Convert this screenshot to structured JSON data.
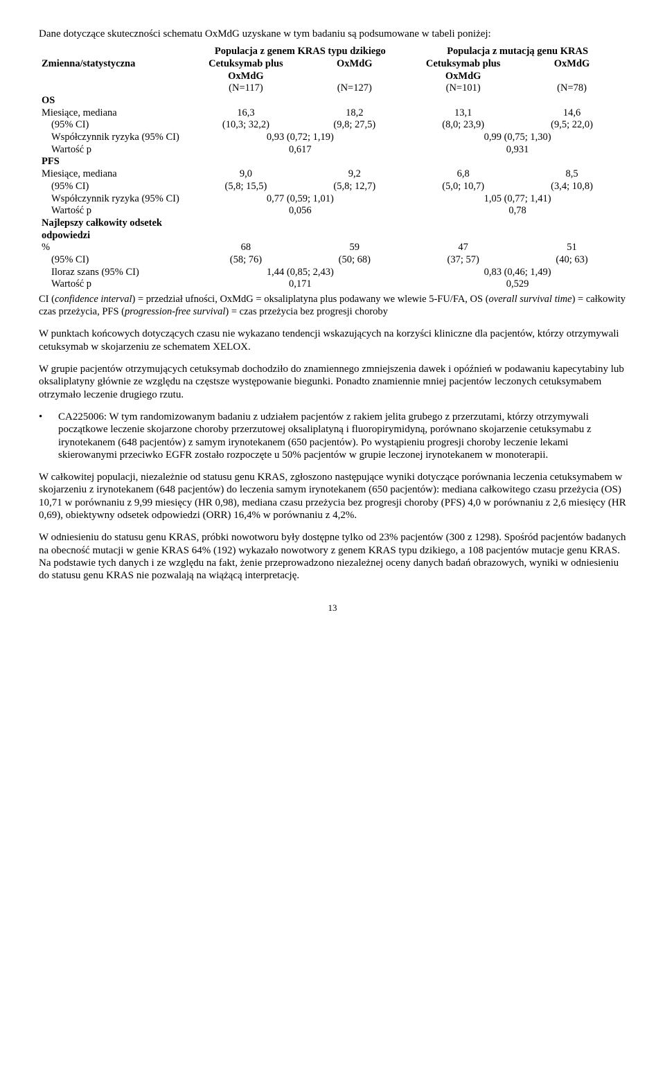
{
  "intro": "Dane dotyczące skuteczności schematu OxMdG uzyskane w tym badaniu są podsumowane w tabeli poniżej:",
  "table": {
    "header": {
      "col0": "Zmienna/statystyczna",
      "group1": "Populacja z genem KRAS typu dzikiego",
      "group2": "Populacja z mutacją genu KRAS",
      "sub1": "Cetuksymab plus OxMdG",
      "sub2": "OxMdG",
      "sub3": "Cetuksymab plus OxMdG",
      "sub4": "OxMdG",
      "n1": "(N=117)",
      "n2": "(N=127)",
      "n3": "(N=101)",
      "n4": "(N=78)"
    },
    "os_label": "OS",
    "months_median": "Miesiące, mediana",
    "os_median": [
      "16,3",
      "18,2",
      "13,1",
      "14,6"
    ],
    "ci95_label": "(95% CI)",
    "os_ci": [
      "(10,3; 32,2)",
      "(9,8; 27,5)",
      "(8,0; 23,9)",
      "(9,5; 22,0)"
    ],
    "hr_label": "Współczynnik ryzyka (95% CI)",
    "os_hr": [
      "0,93 (0,72; 1,19)",
      "0,99 (0,75; 1,30)"
    ],
    "p_label": "Wartość p",
    "os_p": [
      "0,617",
      "0,931"
    ],
    "pfs_label": "PFS",
    "pfs_median": [
      "9,0",
      "9,2",
      "6,8",
      "8,5"
    ],
    "pfs_ci": [
      "(5,8; 15,5)",
      "(5,8; 12,7)",
      "(5,0; 10,7)",
      "(3,4; 10,8)"
    ],
    "pfs_hr": [
      "0,77 (0,59; 1,01)",
      "1,05 (0,77; 1,41)"
    ],
    "pfs_p": [
      "0,056",
      "0,78"
    ],
    "orr_label": "Najlepszy całkowity odsetek odpowiedzi",
    "pct_label": "%",
    "orr_pct": [
      "68",
      "59",
      "47",
      "51"
    ],
    "orr_ci": [
      "(58; 76)",
      "(50; 68)",
      "(37; 57)",
      "(40; 63)"
    ],
    "or_label": "Iloraz szans (95% CI)",
    "orr_or": [
      "1,44 (0,85; 2,43)",
      "0,83 (0,46; 1,49)"
    ],
    "orr_p": [
      "0,171",
      "0,529"
    ]
  },
  "footnote_a": "CI (",
  "footnote_b": "confidence interval",
  "footnote_c": ") = przedział ufności, OxMdG = oksaliplatyna plus podawany we wlewie 5-FU/FA, OS (",
  "footnote_d": "overall survival time",
  "footnote_e": ") = całkowity czas przeżycia, PFS (",
  "footnote_f": "progression-free survival",
  "footnote_g": ") = czas przeżycia bez progresji choroby",
  "p1": "W punktach końcowych dotyczących czasu nie wykazano tendencji wskazujących na korzyści kliniczne dla pacjentów, którzy otrzymywali cetuksymab w skojarzeniu ze schematem XELOX.",
  "p2": "W grupie pacjentów otrzymujących cetuksymab dochodziło do znamiennego zmniejszenia dawek i opóźnień w podawaniu kapecytabiny lub oksaliplatyny głównie ze względu na częstsze występowanie biegunki. Ponadto znamiennie mniej pacjentów leczonych cetuksymabem otrzymało leczenie drugiego rzutu.",
  "bullet": "CA225006: W tym randomizowanym badaniu z udziałem pacjentów z rakiem jelita grubego z przerzutami, którzy otrzymywali początkowe leczenie skojarzone choroby przerzutowej oksaliplatyną i fluoropirymidyną, porównano skojarzenie cetuksymabu z irynotekanem (648 pacjentów) z samym irynotekanem (650 pacjentów). Po wystąpieniu progresji choroby leczenie lekami skierowanymi przeciwko EGFR zostało rozpoczęte u 50% pacjentów w grupie leczonej irynotekanem w monoterapii.",
  "p3": "W całkowitej populacji, niezależnie od statusu genu KRAS, zgłoszono następujące wyniki dotyczące porównania leczenia cetuksymabem w skojarzeniu z irynotekanem (648 pacjentów) do leczenia samym irynotekanem (650 pacjentów): mediana całkowitego czasu przeżycia (OS) 10,71 w porównaniu z 9,99 miesięcy (HR 0,98), mediana czasu przeżycia bez progresji choroby (PFS) 4,0 w porównaniu z 2,6 miesięcy (HR 0,69), obiektywny odsetek odpowiedzi (ORR) 16,4% w porównaniu z 4,2%.",
  "p4": "W odniesieniu do statusu genu KRAS, próbki nowotworu były dostępne tylko od 23% pacjentów (300 z 1298). Spośród pacjentów badanych na obecność mutacji w genie KRAS 64% (192) wykazało nowotwory z genem KRAS typu dzikiego, a 108 pacjentów mutacje genu KRAS. Na podstawie tych danych i ze względu na fakt, żenie przeprowadzono niezależnej oceny danych badań obrazowych, wyniki w odniesieniu do statusu genu KRAS nie pozwalają na wiążącą interpretację.",
  "pagenum": "13"
}
